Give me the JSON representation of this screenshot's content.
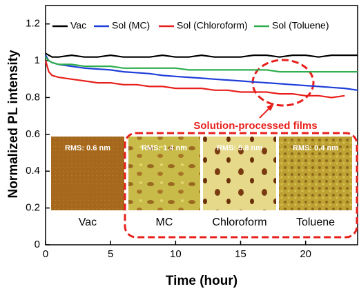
{
  "chart_data": {
    "type": "line",
    "xlabel": "Time (hour)",
    "ylabel": "Normalized PL intensity",
    "x": [
      0,
      0.25,
      0.5,
      1,
      2,
      3,
      4,
      5,
      6,
      7,
      8,
      9,
      10,
      11,
      12,
      13,
      14,
      15,
      16,
      17,
      18,
      19,
      20,
      21,
      22,
      23,
      24
    ],
    "series": [
      {
        "name": "Vac",
        "color": "#000000",
        "values": [
          1.04,
          1.03,
          1.02,
          1.02,
          1.03,
          1.02,
          1.02,
          1.03,
          1.02,
          1.02,
          1.02,
          1.03,
          1.02,
          1.02,
          1.03,
          1.02,
          1.02,
          1.02,
          1.03,
          1.03,
          1.02,
          1.03,
          1.03,
          1.02,
          1.03,
          1.03,
          1.03
        ]
      },
      {
        "name": "Sol (MC)",
        "color": "#1f3fd8",
        "values": [
          1.03,
          1.0,
          0.99,
          0.98,
          0.97,
          0.96,
          0.955,
          0.95,
          0.94,
          0.935,
          0.93,
          0.92,
          0.915,
          0.91,
          0.905,
          0.9,
          0.895,
          0.89,
          0.885,
          0.88,
          0.875,
          0.87,
          0.865,
          0.86,
          0.855,
          0.85,
          0.84
        ]
      },
      {
        "name": "Sol (Chloroform)",
        "color": "#e8201c",
        "values": [
          1.0,
          0.94,
          0.92,
          0.91,
          0.9,
          0.89,
          0.88,
          0.88,
          0.87,
          0.87,
          0.86,
          0.86,
          0.85,
          0.85,
          0.85,
          0.84,
          0.84,
          0.83,
          0.83,
          0.83,
          0.82,
          0.82,
          0.81,
          0.81,
          0.8,
          0.81,
          null
        ]
      },
      {
        "name": "Sol (Toluene)",
        "color": "#2fae4f",
        "values": [
          1.02,
          1.0,
          0.99,
          0.98,
          0.98,
          0.97,
          0.97,
          0.97,
          0.96,
          0.96,
          0.96,
          0.96,
          0.96,
          0.95,
          0.95,
          0.95,
          0.95,
          0.95,
          0.95,
          0.95,
          0.94,
          0.94,
          0.94,
          0.94,
          0.94,
          0.94,
          0.94
        ]
      }
    ],
    "xlim": [
      0,
      24
    ],
    "xticks": [
      0,
      5,
      10,
      15,
      20
    ],
    "ylim": [
      0,
      1.3
    ],
    "yticks": [
      0,
      0.2,
      0.4,
      0.6,
      0.8,
      1,
      1.2
    ],
    "legend": "top",
    "annotation": "Solution-processed films",
    "insets": [
      {
        "rms": "RMS: 0.6 nm",
        "label": "Vac"
      },
      {
        "rms": "RMS: 1.4 nm",
        "label": "MC"
      },
      {
        "rms": "RMS: 5.8 nm",
        "label": "Chloroform"
      },
      {
        "rms": "RMS: 0.4 nm",
        "label": "Toluene"
      }
    ]
  }
}
